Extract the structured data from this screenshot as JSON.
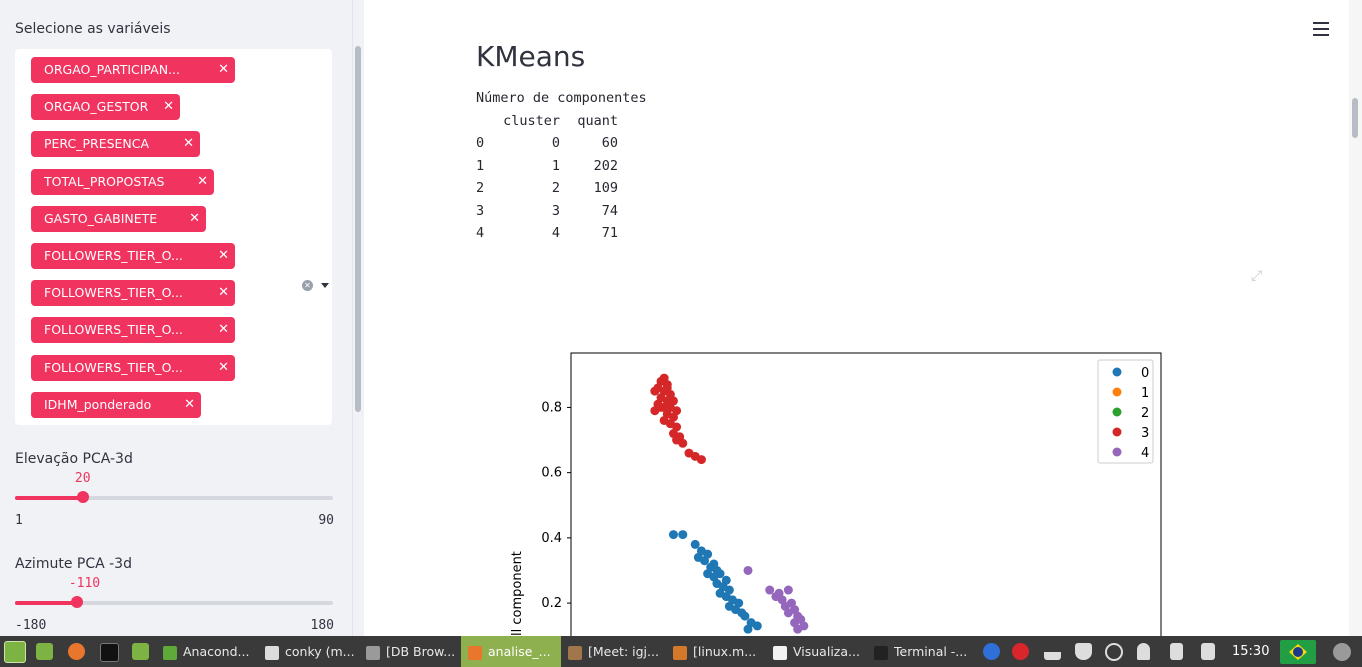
{
  "sidebar": {
    "vars_label": "Selecione as variáveis",
    "chips": [
      {
        "label": "ORGAO_PARTICIPAN...",
        "remove": "✕"
      },
      {
        "label": "ORGAO_GESTOR",
        "remove": "✕"
      },
      {
        "label": "PERC_PRESENCA",
        "remove": "✕"
      },
      {
        "label": "TOTAL_PROPOSTAS",
        "remove": "✕"
      },
      {
        "label": "GASTO_GABINETE",
        "remove": "✕"
      },
      {
        "label": "FOLLOWERS_TIER_O...",
        "remove": "✕"
      },
      {
        "label": "FOLLOWERS_TIER_O...",
        "remove": "✕"
      },
      {
        "label": "FOLLOWERS_TIER_O...",
        "remove": "✕"
      },
      {
        "label": "FOLLOWERS_TIER_O...",
        "remove": "✕"
      },
      {
        "label": "IDHM_ponderado",
        "remove": "✕"
      }
    ],
    "clear_glyph": "✕",
    "elev": {
      "label": "Elevação PCA-3d",
      "value": "20",
      "min": "1",
      "max": "90",
      "fraction": 0.2135
    },
    "azim": {
      "label": "Azimute PCA -3d",
      "value": "-110",
      "min": "-180",
      "max": "180",
      "fraction": 0.1944
    }
  },
  "main": {
    "title": "KMeans",
    "caption": "Número de componentes",
    "table": {
      "header": [
        "",
        "cluster",
        "quant"
      ],
      "rows": [
        [
          "0",
          "0",
          "60"
        ],
        [
          "1",
          "1",
          "202"
        ],
        [
          "2",
          "2",
          "109"
        ],
        [
          "3",
          "3",
          "74"
        ],
        [
          "4",
          "4",
          "71"
        ]
      ]
    },
    "expand_glyph": "⤢"
  },
  "chart_data": {
    "type": "scatter",
    "ylabel": "ll component",
    "yticks": [
      "0.8",
      "0.6",
      "0.4",
      "0.2"
    ],
    "yrange_visible": [
      0.05,
      0.97
    ],
    "legend": [
      {
        "name": "0",
        "color": "#1f77b4"
      },
      {
        "name": "1",
        "color": "#ff7f0e"
      },
      {
        "name": "2",
        "color": "#2ca02c"
      },
      {
        "name": "3",
        "color": "#d62728"
      },
      {
        "name": "4",
        "color": "#9467bd"
      }
    ],
    "series": [
      {
        "name": "3",
        "color": "#d62728",
        "points": [
          [
            0.3,
            0.89
          ],
          [
            0.29,
            0.88
          ],
          [
            0.31,
            0.87
          ],
          [
            0.28,
            0.86
          ],
          [
            0.27,
            0.85
          ],
          [
            0.3,
            0.85
          ],
          [
            0.32,
            0.84
          ],
          [
            0.29,
            0.83
          ],
          [
            0.31,
            0.82
          ],
          [
            0.33,
            0.82
          ],
          [
            0.28,
            0.81
          ],
          [
            0.3,
            0.8
          ],
          [
            0.32,
            0.8
          ],
          [
            0.27,
            0.79
          ],
          [
            0.31,
            0.78
          ],
          [
            0.33,
            0.77
          ],
          [
            0.3,
            0.76
          ],
          [
            0.32,
            0.75
          ],
          [
            0.34,
            0.74
          ],
          [
            0.33,
            0.72
          ],
          [
            0.35,
            0.71
          ],
          [
            0.34,
            0.7
          ],
          [
            0.36,
            0.69
          ],
          [
            0.38,
            0.66
          ],
          [
            0.4,
            0.65
          ],
          [
            0.42,
            0.64
          ],
          [
            0.31,
            0.86
          ],
          [
            0.29,
            0.8
          ],
          [
            0.34,
            0.79
          ]
        ]
      },
      {
        "name": "0",
        "color": "#1f77b4",
        "points": [
          [
            0.33,
            0.41
          ],
          [
            0.36,
            0.41
          ],
          [
            0.4,
            0.38
          ],
          [
            0.42,
            0.36
          ],
          [
            0.44,
            0.35
          ],
          [
            0.41,
            0.34
          ],
          [
            0.43,
            0.33
          ],
          [
            0.46,
            0.32
          ],
          [
            0.45,
            0.31
          ],
          [
            0.47,
            0.3
          ],
          [
            0.44,
            0.29
          ],
          [
            0.48,
            0.29
          ],
          [
            0.46,
            0.28
          ],
          [
            0.5,
            0.27
          ],
          [
            0.47,
            0.26
          ],
          [
            0.49,
            0.25
          ],
          [
            0.51,
            0.24
          ],
          [
            0.48,
            0.23
          ],
          [
            0.5,
            0.22
          ],
          [
            0.52,
            0.21
          ],
          [
            0.54,
            0.2
          ],
          [
            0.51,
            0.19
          ],
          [
            0.53,
            0.18
          ],
          [
            0.55,
            0.17
          ],
          [
            0.56,
            0.16
          ],
          [
            0.58,
            0.14
          ],
          [
            0.6,
            0.13
          ],
          [
            0.57,
            0.12
          ]
        ]
      },
      {
        "name": "4",
        "color": "#9467bd",
        "points": [
          [
            0.57,
            0.3
          ],
          [
            0.64,
            0.24
          ],
          [
            0.67,
            0.23
          ],
          [
            0.7,
            0.24
          ],
          [
            0.66,
            0.22
          ],
          [
            0.68,
            0.21
          ],
          [
            0.71,
            0.2
          ],
          [
            0.69,
            0.19
          ],
          [
            0.72,
            0.18
          ],
          [
            0.7,
            0.17
          ],
          [
            0.73,
            0.16
          ],
          [
            0.74,
            0.15
          ],
          [
            0.72,
            0.14
          ],
          [
            0.75,
            0.13
          ],
          [
            0.73,
            0.12
          ]
        ]
      }
    ]
  },
  "taskbar": {
    "items": [
      {
        "label": "Anacond...",
        "icon_color": "#5fa83a"
      },
      {
        "label": "conky (m...",
        "icon_color": "#dcdcdc"
      },
      {
        "label": "[DB Brow...",
        "icon_color": "#9a9a9a"
      },
      {
        "label": "analise_...",
        "icon_color": "#e8762c",
        "active": true
      },
      {
        "label": "[Meet: igj...",
        "icon_color": "#a0764a"
      },
      {
        "label": "[linux.m...",
        "icon_color": "#d27a2a"
      },
      {
        "label": "Visualiza...",
        "icon_color": "#f2f2f2"
      },
      {
        "label": "Terminal -...",
        "icon_color": "#222222"
      }
    ],
    "clock": "15:30"
  }
}
